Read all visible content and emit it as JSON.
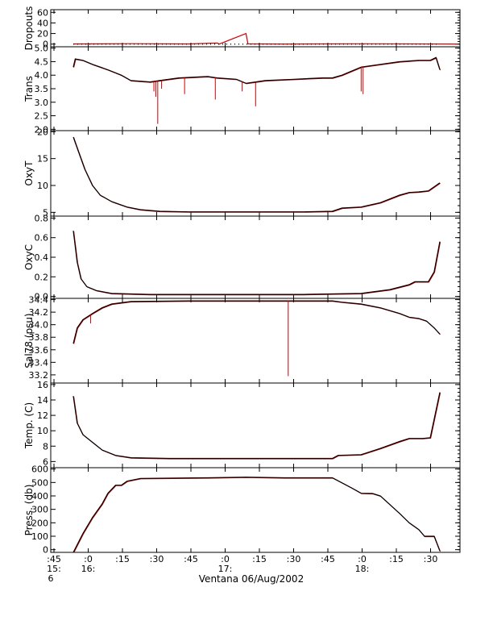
{
  "chart_data": {
    "type": "line",
    "xlabel": "Ventana 06/Aug/2002",
    "x_tick_labels": [
      ":45",
      ":0",
      ":15",
      ":30",
      ":45",
      ":0",
      ":15",
      ":30",
      ":45",
      ":0",
      ":15",
      ":30"
    ],
    "x_hour_labels": [
      {
        "tick_index": 0,
        "text": "15:"
      },
      {
        "tick_index": 1,
        "text": "16:"
      },
      {
        "tick_index": 5,
        "text": "17:"
      },
      {
        "tick_index": 9,
        "text": "18:"
      }
    ],
    "x_footnote": {
      "tick_index": 0,
      "text": "6"
    },
    "panels": [
      {
        "name": "dropouts",
        "ylabel": "Dropouts",
        "ylim": [
          -5,
          65
        ],
        "yticks": [
          0,
          20,
          40,
          60
        ],
        "ytick_labels": [
          "0",
          "20",
          "40",
          "60"
        ],
        "series": [
          {
            "color": "#cc0000",
            "points": [
              [
                0,
                0.3
              ],
              [
                30,
                0.8
              ],
              [
                60,
                0.3
              ],
              [
                75,
                2
              ],
              [
                76,
                0
              ],
              [
                90,
                20
              ],
              [
                91,
                0.5
              ],
              [
                110,
                0.2
              ],
              [
                150,
                0.6
              ],
              [
                200,
                0.2
              ]
            ]
          }
        ]
      },
      {
        "name": "trans",
        "ylabel": "Trans",
        "ylim": [
          1.95,
          5.05
        ],
        "yticks": [
          2.0,
          2.5,
          3.0,
          3.5,
          4.0,
          4.5,
          5.0
        ],
        "ytick_labels": [
          "2.0",
          "2.5",
          "3.0",
          "3.5",
          "4.0",
          "4.5",
          "5.0"
        ],
        "series": [
          {
            "color": "#000000",
            "points": [
              [
                0,
                4.3
              ],
              [
                1,
                4.6
              ],
              [
                5,
                4.55
              ],
              [
                10,
                4.4
              ],
              [
                18,
                4.2
              ],
              [
                25,
                4.0
              ],
              [
                30,
                3.8
              ],
              [
                40,
                3.75
              ],
              [
                45,
                3.8
              ],
              [
                55,
                3.9
              ],
              [
                70,
                3.95
              ],
              [
                75,
                3.9
              ],
              [
                85,
                3.85
              ],
              [
                90,
                3.7
              ],
              [
                95,
                3.75
              ],
              [
                100,
                3.8
              ],
              [
                115,
                3.85
              ],
              [
                130,
                3.9
              ],
              [
                135,
                3.9
              ],
              [
                140,
                4.0
              ],
              [
                150,
                4.3
              ],
              [
                160,
                4.4
              ],
              [
                170,
                4.5
              ],
              [
                180,
                4.55
              ],
              [
                186,
                4.55
              ],
              [
                189,
                4.65
              ],
              [
                191,
                4.2
              ]
            ]
          }
        ],
        "spikes": [
          [
            42,
            3.4
          ],
          [
            43,
            3.2
          ],
          [
            44,
            2.2
          ],
          [
            46,
            3.5
          ],
          [
            58,
            3.3
          ],
          [
            74,
            3.1
          ],
          [
            88,
            3.4
          ],
          [
            95,
            2.85
          ],
          [
            150,
            3.4
          ],
          [
            151,
            3.3
          ]
        ]
      },
      {
        "name": "oxyt",
        "ylabel": "OxyT",
        "ylim": [
          4.3,
          20.2
        ],
        "yticks": [
          5,
          10,
          15,
          20
        ],
        "ytick_labels": [
          "5",
          "10",
          "15",
          "20"
        ],
        "series": [
          {
            "color": "#000000",
            "points": [
              [
                0,
                19
              ],
              [
                3,
                16
              ],
              [
                6,
                13
              ],
              [
                10,
                10
              ],
              [
                14,
                8.2
              ],
              [
                20,
                7.0
              ],
              [
                28,
                6.0
              ],
              [
                35,
                5.5
              ],
              [
                45,
                5.2
              ],
              [
                60,
                5.1
              ],
              [
                90,
                5.1
              ],
              [
                120,
                5.1
              ],
              [
                135,
                5.2
              ],
              [
                140,
                5.8
              ],
              [
                150,
                6.0
              ],
              [
                160,
                6.8
              ],
              [
                170,
                8.2
              ],
              [
                175,
                8.7
              ],
              [
                180,
                8.8
              ],
              [
                185,
                9.0
              ],
              [
                191,
                10.5
              ]
            ]
          }
        ]
      },
      {
        "name": "oxyc",
        "ylabel": "OxyC",
        "ylim": [
          -0.02,
          0.82
        ],
        "yticks": [
          0.0,
          0.2,
          0.4,
          0.6,
          0.8
        ],
        "ytick_labels": [
          "0.0",
          "0.2",
          "0.4",
          "0.6",
          "0.8"
        ],
        "series": [
          {
            "color": "#000000",
            "points": [
              [
                0,
                0.67
              ],
              [
                2,
                0.35
              ],
              [
                4,
                0.18
              ],
              [
                7,
                0.1
              ],
              [
                12,
                0.06
              ],
              [
                20,
                0.03
              ],
              [
                40,
                0.02
              ],
              [
                80,
                0.02
              ],
              [
                120,
                0.02
              ],
              [
                150,
                0.03
              ],
              [
                165,
                0.07
              ],
              [
                175,
                0.12
              ],
              [
                178,
                0.15
              ],
              [
                185,
                0.15
              ],
              [
                188,
                0.25
              ],
              [
                191,
                0.56
              ]
            ]
          }
        ]
      },
      {
        "name": "sal78",
        "ylabel": "Sal78 (psu)",
        "ylim": [
          33.07,
          34.42
        ],
        "yticks": [
          33.2,
          33.4,
          33.6,
          33.8,
          34.0,
          34.2,
          34.4
        ],
        "ytick_labels": [
          "33.2",
          "33.4",
          "33.6",
          "33.8",
          "34.0",
          "34.2",
          "34.4"
        ],
        "series": [
          {
            "color": "#000000",
            "points": [
              [
                0,
                33.7
              ],
              [
                2,
                33.95
              ],
              [
                5,
                34.08
              ],
              [
                10,
                34.18
              ],
              [
                15,
                34.27
              ],
              [
                20,
                34.33
              ],
              [
                30,
                34.37
              ],
              [
                60,
                34.38
              ],
              [
                110,
                34.38
              ],
              [
                135,
                34.38
              ],
              [
                140,
                34.36
              ],
              [
                150,
                34.33
              ],
              [
                160,
                34.27
              ],
              [
                170,
                34.18
              ],
              [
                175,
                34.12
              ],
              [
                180,
                34.1
              ],
              [
                184,
                34.06
              ],
              [
                188,
                33.95
              ],
              [
                191,
                33.85
              ]
            ]
          }
        ],
        "spikes": [
          [
            9,
            34.02
          ],
          [
            112,
            33.18
          ]
        ]
      },
      {
        "name": "temp",
        "ylabel": "Temp. (C)",
        "ylim": [
          5.2,
          16.2
        ],
        "yticks": [
          6,
          8,
          10,
          12,
          14,
          16
        ],
        "ytick_labels": [
          "6",
          "8",
          "10",
          "12",
          "14",
          "16"
        ],
        "series": [
          {
            "color": "#000000",
            "points": [
              [
                0,
                14.5
              ],
              [
                2,
                11
              ],
              [
                5,
                9.5
              ],
              [
                10,
                8.5
              ],
              [
                15,
                7.5
              ],
              [
                22,
                6.8
              ],
              [
                30,
                6.5
              ],
              [
                50,
                6.4
              ],
              [
                100,
                6.4
              ],
              [
                135,
                6.4
              ],
              [
                138,
                6.8
              ],
              [
                150,
                6.9
              ],
              [
                160,
                7.7
              ],
              [
                170,
                8.6
              ],
              [
                175,
                9.0
              ],
              [
                182,
                9.0
              ],
              [
                186,
                9.1
              ],
              [
                191,
                15
              ]
            ]
          }
        ]
      },
      {
        "name": "press",
        "ylabel": "Press. (db)",
        "ylim": [
          -20,
          610
        ],
        "yticks": [
          0,
          100,
          200,
          300,
          400,
          500,
          600
        ],
        "ytick_labels": [
          "0",
          "100",
          "200",
          "300",
          "400",
          "500",
          "600"
        ],
        "series": [
          {
            "color": "#000000",
            "points": [
              [
                0,
                -20
              ],
              [
                5,
                120
              ],
              [
                10,
                240
              ],
              [
                15,
                340
              ],
              [
                18,
                420
              ],
              [
                22,
                480
              ],
              [
                25,
                480
              ],
              [
                28,
                510
              ],
              [
                35,
                530
              ],
              [
                70,
                535
              ],
              [
                90,
                540
              ],
              [
                110,
                535
              ],
              [
                135,
                535
              ],
              [
                145,
                460
              ],
              [
                150,
                420
              ],
              [
                156,
                418
              ],
              [
                160,
                400
              ],
              [
                170,
                270
              ],
              [
                175,
                200
              ],
              [
                180,
                150
              ],
              [
                183,
                100
              ],
              [
                188,
                100
              ],
              [
                191,
                -10
              ]
            ]
          }
        ]
      }
    ]
  }
}
